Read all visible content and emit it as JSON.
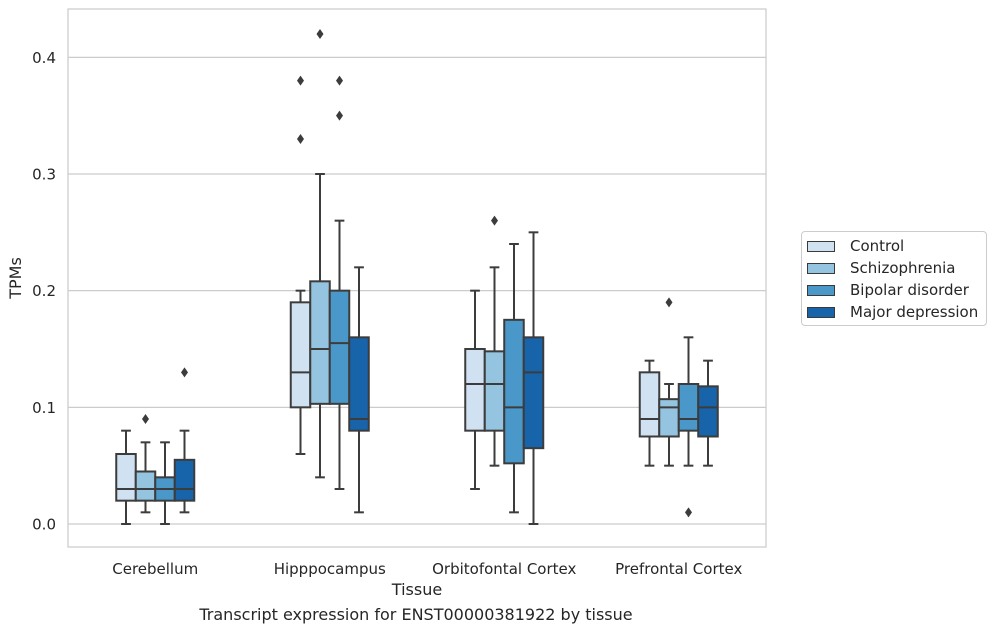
{
  "caption": "Transcript expression for ENST00000381922 by tissue",
  "chart_data": {
    "type": "box",
    "xlabel": "Tissue",
    "ylabel": "TPMs",
    "ylim": [
      -0.02,
      0.44
    ],
    "yticks": [
      0.0,
      0.1,
      0.2,
      0.3,
      0.4
    ],
    "ytick_labels": [
      "0.0",
      "0.1",
      "0.2",
      "0.3",
      "0.4"
    ],
    "grid": "horizontal",
    "legend_position": "outside-right",
    "categories": [
      "Cerebellum",
      "Hipppocampus",
      "Orbitofontal Cortex",
      "Prefrontal Cortex"
    ],
    "series": [
      {
        "name": "Control",
        "color": "#d0e1f2",
        "boxes": [
          {
            "whislo": 0.0,
            "q1": 0.02,
            "med": 0.03,
            "q3": 0.06,
            "whishi": 0.08,
            "fliers": []
          },
          {
            "whislo": 0.06,
            "q1": 0.1,
            "med": 0.13,
            "q3": 0.19,
            "whishi": 0.2,
            "fliers": [
              0.33,
              0.38
            ]
          },
          {
            "whislo": 0.03,
            "q1": 0.08,
            "med": 0.12,
            "q3": 0.15,
            "whishi": 0.2,
            "fliers": []
          },
          {
            "whislo": 0.05,
            "q1": 0.075,
            "med": 0.09,
            "q3": 0.13,
            "whishi": 0.14,
            "fliers": []
          }
        ]
      },
      {
        "name": "Schizophrenia",
        "color": "#94c4df",
        "boxes": [
          {
            "whislo": 0.01,
            "q1": 0.02,
            "med": 0.03,
            "q3": 0.045,
            "whishi": 0.07,
            "fliers": [
              0.09
            ]
          },
          {
            "whislo": 0.04,
            "q1": 0.103,
            "med": 0.15,
            "q3": 0.208,
            "whishi": 0.3,
            "fliers": [
              0.42
            ]
          },
          {
            "whislo": 0.05,
            "q1": 0.08,
            "med": 0.12,
            "q3": 0.148,
            "whishi": 0.22,
            "fliers": [
              0.26
            ]
          },
          {
            "whislo": 0.05,
            "q1": 0.075,
            "med": 0.1,
            "q3": 0.107,
            "whishi": 0.12,
            "fliers": [
              0.19
            ]
          }
        ]
      },
      {
        "name": "Bipolar disorder",
        "color": "#4a98c9",
        "boxes": [
          {
            "whislo": 0.0,
            "q1": 0.02,
            "med": 0.03,
            "q3": 0.04,
            "whishi": 0.07,
            "fliers": []
          },
          {
            "whislo": 0.03,
            "q1": 0.103,
            "med": 0.155,
            "q3": 0.2,
            "whishi": 0.26,
            "fliers": [
              0.35,
              0.38
            ]
          },
          {
            "whislo": 0.01,
            "q1": 0.052,
            "med": 0.1,
            "q3": 0.175,
            "whishi": 0.24,
            "fliers": []
          },
          {
            "whislo": 0.05,
            "q1": 0.08,
            "med": 0.09,
            "q3": 0.12,
            "whishi": 0.16,
            "fliers": [
              0.01
            ]
          }
        ]
      },
      {
        "name": "Major depression",
        "color": "#1764ab",
        "boxes": [
          {
            "whislo": 0.01,
            "q1": 0.02,
            "med": 0.03,
            "q3": 0.055,
            "whishi": 0.08,
            "fliers": [
              0.13
            ]
          },
          {
            "whislo": 0.01,
            "q1": 0.08,
            "med": 0.09,
            "q3": 0.16,
            "whishi": 0.22,
            "fliers": []
          },
          {
            "whislo": 0.0,
            "q1": 0.065,
            "med": 0.13,
            "q3": 0.16,
            "whishi": 0.25,
            "fliers": []
          },
          {
            "whislo": 0.05,
            "q1": 0.075,
            "med": 0.1,
            "q3": 0.118,
            "whishi": 0.14,
            "fliers": []
          }
        ]
      }
    ]
  }
}
